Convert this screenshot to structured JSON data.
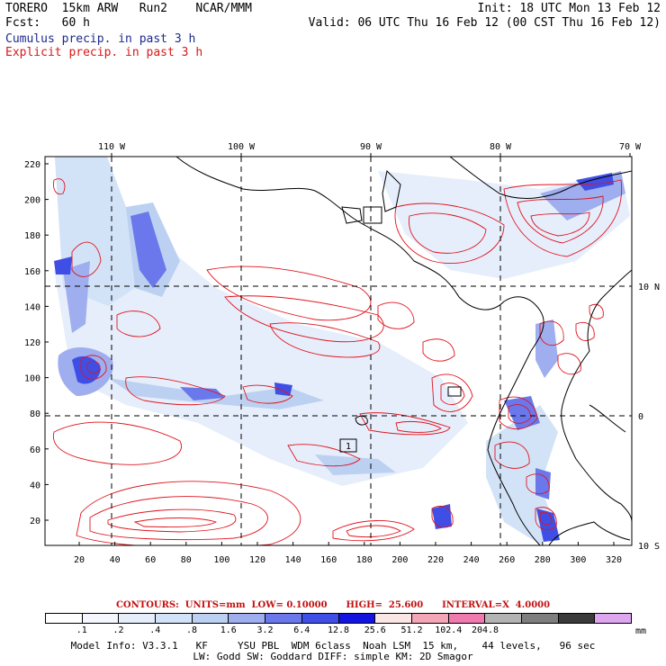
{
  "header": {
    "title_left": "TORERO  15km ARW   Run2    NCAR/MMM",
    "fcst_left": "Fcst:   60 h",
    "init_right": "Init: 18 UTC Mon 13 Feb 12",
    "valid_right": "Valid: 06 UTC Thu 16 Feb 12 (00 CST Thu 16 Feb 12)",
    "legend_cumulus": "Cumulus precip. in past 3 h",
    "legend_explicit": "Explicit precip. in past 3 h"
  },
  "colors": {
    "cumulus_text": "#1c2a8c",
    "explicit_text": "#d81818",
    "contour": "#e0141e",
    "coast": "#000000",
    "grid": "#000000"
  },
  "map": {
    "top_lon_labels": [
      "110 W",
      "100 W",
      "90 W",
      "80 W",
      "70 W"
    ],
    "right_lat_labels": [
      "10 N",
      "0",
      "10 S"
    ],
    "left_y_ticks": [
      "220",
      "200",
      "180",
      "160",
      "140",
      "120",
      "100",
      "80",
      "60",
      "40",
      "20"
    ],
    "bottom_x_ticks": [
      "20",
      "40",
      "60",
      "80",
      "100",
      "120",
      "140",
      "160",
      "180",
      "200",
      "220",
      "240",
      "260",
      "280",
      "300",
      "320"
    ],
    "box_label": "1"
  },
  "contours_line": "CONTOURS:  UNITS=mm  LOW= 0.10000      HIGH=  25.600      INTERVAL=X  4.0000",
  "scale": {
    "colors": [
      "#ffffff",
      "#f4f7fd",
      "#e6eefb",
      "#d3e3f7",
      "#bcd1f1",
      "#9faeee",
      "#6a78ec",
      "#3f4fe6",
      "#1414e0",
      "#fbe6e6",
      "#f2a6b6",
      "#ee7aae",
      "#b4b4b4",
      "#7e7e7e",
      "#3a3a3a",
      "#dfa6f0"
    ],
    "labels": [
      ".1",
      ".2",
      ".4",
      ".8",
      "1.6",
      "3.2",
      "6.4",
      "12.8",
      "25.6",
      "51.2",
      "102.4",
      "204.8"
    ],
    "unit": "mm"
  },
  "model_info_1": "Model Info: V3.3.1   KF     YSU PBL  WDM 6class  Noah LSM  15 km,    44 levels,   96 sec",
  "model_info_2": "LW: Godd SW: Goddard DIFF: simple KM: 2D Smagor"
}
